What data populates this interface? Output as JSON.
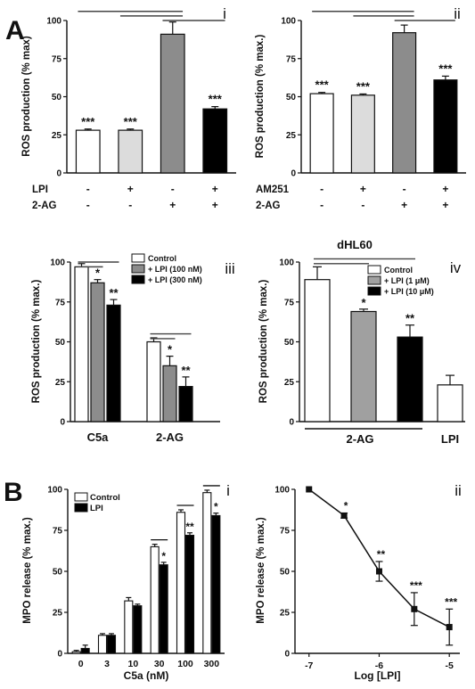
{
  "panel_labels": {
    "A": "A",
    "B": "B"
  },
  "chart_data": [
    {
      "id": "A-i",
      "type": "bar",
      "roman": "i",
      "ylabel": "ROS production (% max)",
      "ylim": [
        0,
        100
      ],
      "yticks": [
        "0",
        "25",
        "50",
        "75",
        "100"
      ],
      "values": [
        28,
        28,
        91,
        42
      ],
      "errors": [
        0.8,
        0.8,
        8,
        1.5
      ],
      "colors": [
        "#ffffff",
        "#dcdcdc",
        "#8c8c8c",
        "#000000"
      ],
      "stars": [
        "***",
        "***",
        "",
        "***"
      ],
      "factors": [
        {
          "name": "LPI",
          "signs": [
            "-",
            "+",
            "-",
            "+"
          ]
        },
        {
          "name": "2-AG",
          "signs": [
            "-",
            "-",
            "+",
            "+"
          ]
        }
      ],
      "brackets": [
        [
          0,
          2,
          106
        ],
        [
          1,
          2,
          103
        ],
        [
          2,
          3,
          100
        ]
      ]
    },
    {
      "id": "A-ii",
      "type": "bar",
      "roman": "ii",
      "ylabel": "ROS production (% max.)",
      "ylim": [
        0,
        100
      ],
      "yticks": [
        "0",
        "25",
        "50",
        "75",
        "100"
      ],
      "values": [
        52,
        51,
        92,
        61
      ],
      "errors": [
        0.8,
        0.8,
        5,
        2.5
      ],
      "colors": [
        "#ffffff",
        "#dcdcdc",
        "#8c8c8c",
        "#000000"
      ],
      "stars": [
        "***",
        "***",
        "",
        "***"
      ],
      "factors": [
        {
          "name": "AM251",
          "signs": [
            "-",
            "+",
            "-",
            "+"
          ]
        },
        {
          "name": "2-AG",
          "signs": [
            "-",
            "-",
            "+",
            "+"
          ]
        }
      ],
      "brackets": [
        [
          0,
          2,
          106
        ],
        [
          1,
          2,
          103
        ],
        [
          2,
          3,
          100
        ]
      ]
    },
    {
      "id": "A-iii",
      "type": "bar",
      "roman": "iii",
      "ylabel": "ROS production (% max.)",
      "ylim": [
        0,
        100
      ],
      "yticks": [
        "0",
        "25",
        "50",
        "75",
        "100"
      ],
      "categories": [
        "C5a",
        "2-AG"
      ],
      "series": [
        {
          "name": "Control",
          "values": [
            97,
            50
          ],
          "errors": [
            2,
            2.5
          ],
          "stars": [
            "",
            ""
          ]
        },
        {
          "name": "+ LPI (100 nM)",
          "values": [
            87,
            35
          ],
          "errors": [
            2,
            6
          ],
          "stars": [
            "*",
            "*"
          ]
        },
        {
          "name": "+ LPI (300 nM)",
          "values": [
            73,
            22
          ],
          "errors": [
            3.5,
            6
          ],
          "stars": [
            "**",
            "**"
          ]
        }
      ],
      "colors": [
        "#ffffff",
        "#8c8c8c",
        "#000000"
      ],
      "brackets": [
        [
          0,
          0,
          2,
          100
        ],
        [
          0,
          0,
          1,
          97
        ],
        [
          1,
          0,
          2,
          55
        ],
        [
          1,
          0,
          1,
          52
        ]
      ]
    },
    {
      "id": "A-iv",
      "type": "bar",
      "roman": "iv",
      "title": "dHL60",
      "ylabel": "ROS production (% max.)",
      "ylim": [
        0,
        100
      ],
      "yticks": [
        "0",
        "25",
        "50",
        "75",
        "100"
      ],
      "series": [
        {
          "name": "Control",
          "value": 89,
          "error": 8,
          "star": ""
        },
        {
          "name": "+ LPI (1 μM)",
          "value": 69,
          "error": 1.5,
          "star": "*"
        },
        {
          "name": "+ LPI (10 μM)",
          "value": 53,
          "error": 7.5,
          "star": "**"
        }
      ],
      "lpi_bar": {
        "value": 23,
        "error": 6
      },
      "group_labels": [
        "2-AG",
        "LPI"
      ],
      "colors": [
        "#ffffff",
        "#a0a0a0",
        "#000000"
      ],
      "brackets": [
        [
          0,
          2,
          102
        ],
        [
          0,
          1,
          99
        ]
      ]
    },
    {
      "id": "B-i",
      "type": "bar",
      "roman": "i",
      "ylabel": "MPO release (% max.)",
      "xlabel": "C5a (nM)",
      "ylim": [
        0,
        100
      ],
      "yticks": [
        "0",
        "25",
        "50",
        "75",
        "100"
      ],
      "categories": [
        "0",
        "3",
        "10",
        "30",
        "100",
        "300"
      ],
      "series": [
        {
          "name": "Control",
          "values": [
            1,
            11,
            32,
            65,
            86,
            98
          ],
          "errors": [
            0.8,
            1,
            2,
            1.5,
            1.5,
            1.5
          ]
        },
        {
          "name": "LPI",
          "values": [
            3,
            11,
            29,
            54,
            72,
            84
          ],
          "errors": [
            2,
            1,
            1,
            1.5,
            1.5,
            1.5
          ]
        }
      ],
      "stars": [
        "",
        "",
        "",
        "*",
        "**",
        "*"
      ],
      "colors": [
        "#ffffff",
        "#000000"
      ]
    },
    {
      "id": "B-ii",
      "type": "line",
      "roman": "ii",
      "ylabel": "MPO release (% max.)",
      "xlabel": "Log [LPI]",
      "ylim": [
        0,
        100
      ],
      "xlim": [
        -7.2,
        -4.85
      ],
      "yticks": [
        "0",
        "25",
        "50",
        "75",
        "100"
      ],
      "xticks": [
        {
          "v": -7,
          "label": "-7"
        },
        {
          "v": -6,
          "label": "-6"
        },
        {
          "v": -5,
          "label": "-5"
        }
      ],
      "x": [
        -7,
        -6.5,
        -6,
        -5.5,
        -5
      ],
      "y": [
        100,
        84,
        50,
        27,
        16
      ],
      "errors": [
        0,
        1.5,
        6,
        10,
        11
      ],
      "stars": [
        "",
        "*",
        "**",
        "***",
        "***"
      ]
    }
  ]
}
